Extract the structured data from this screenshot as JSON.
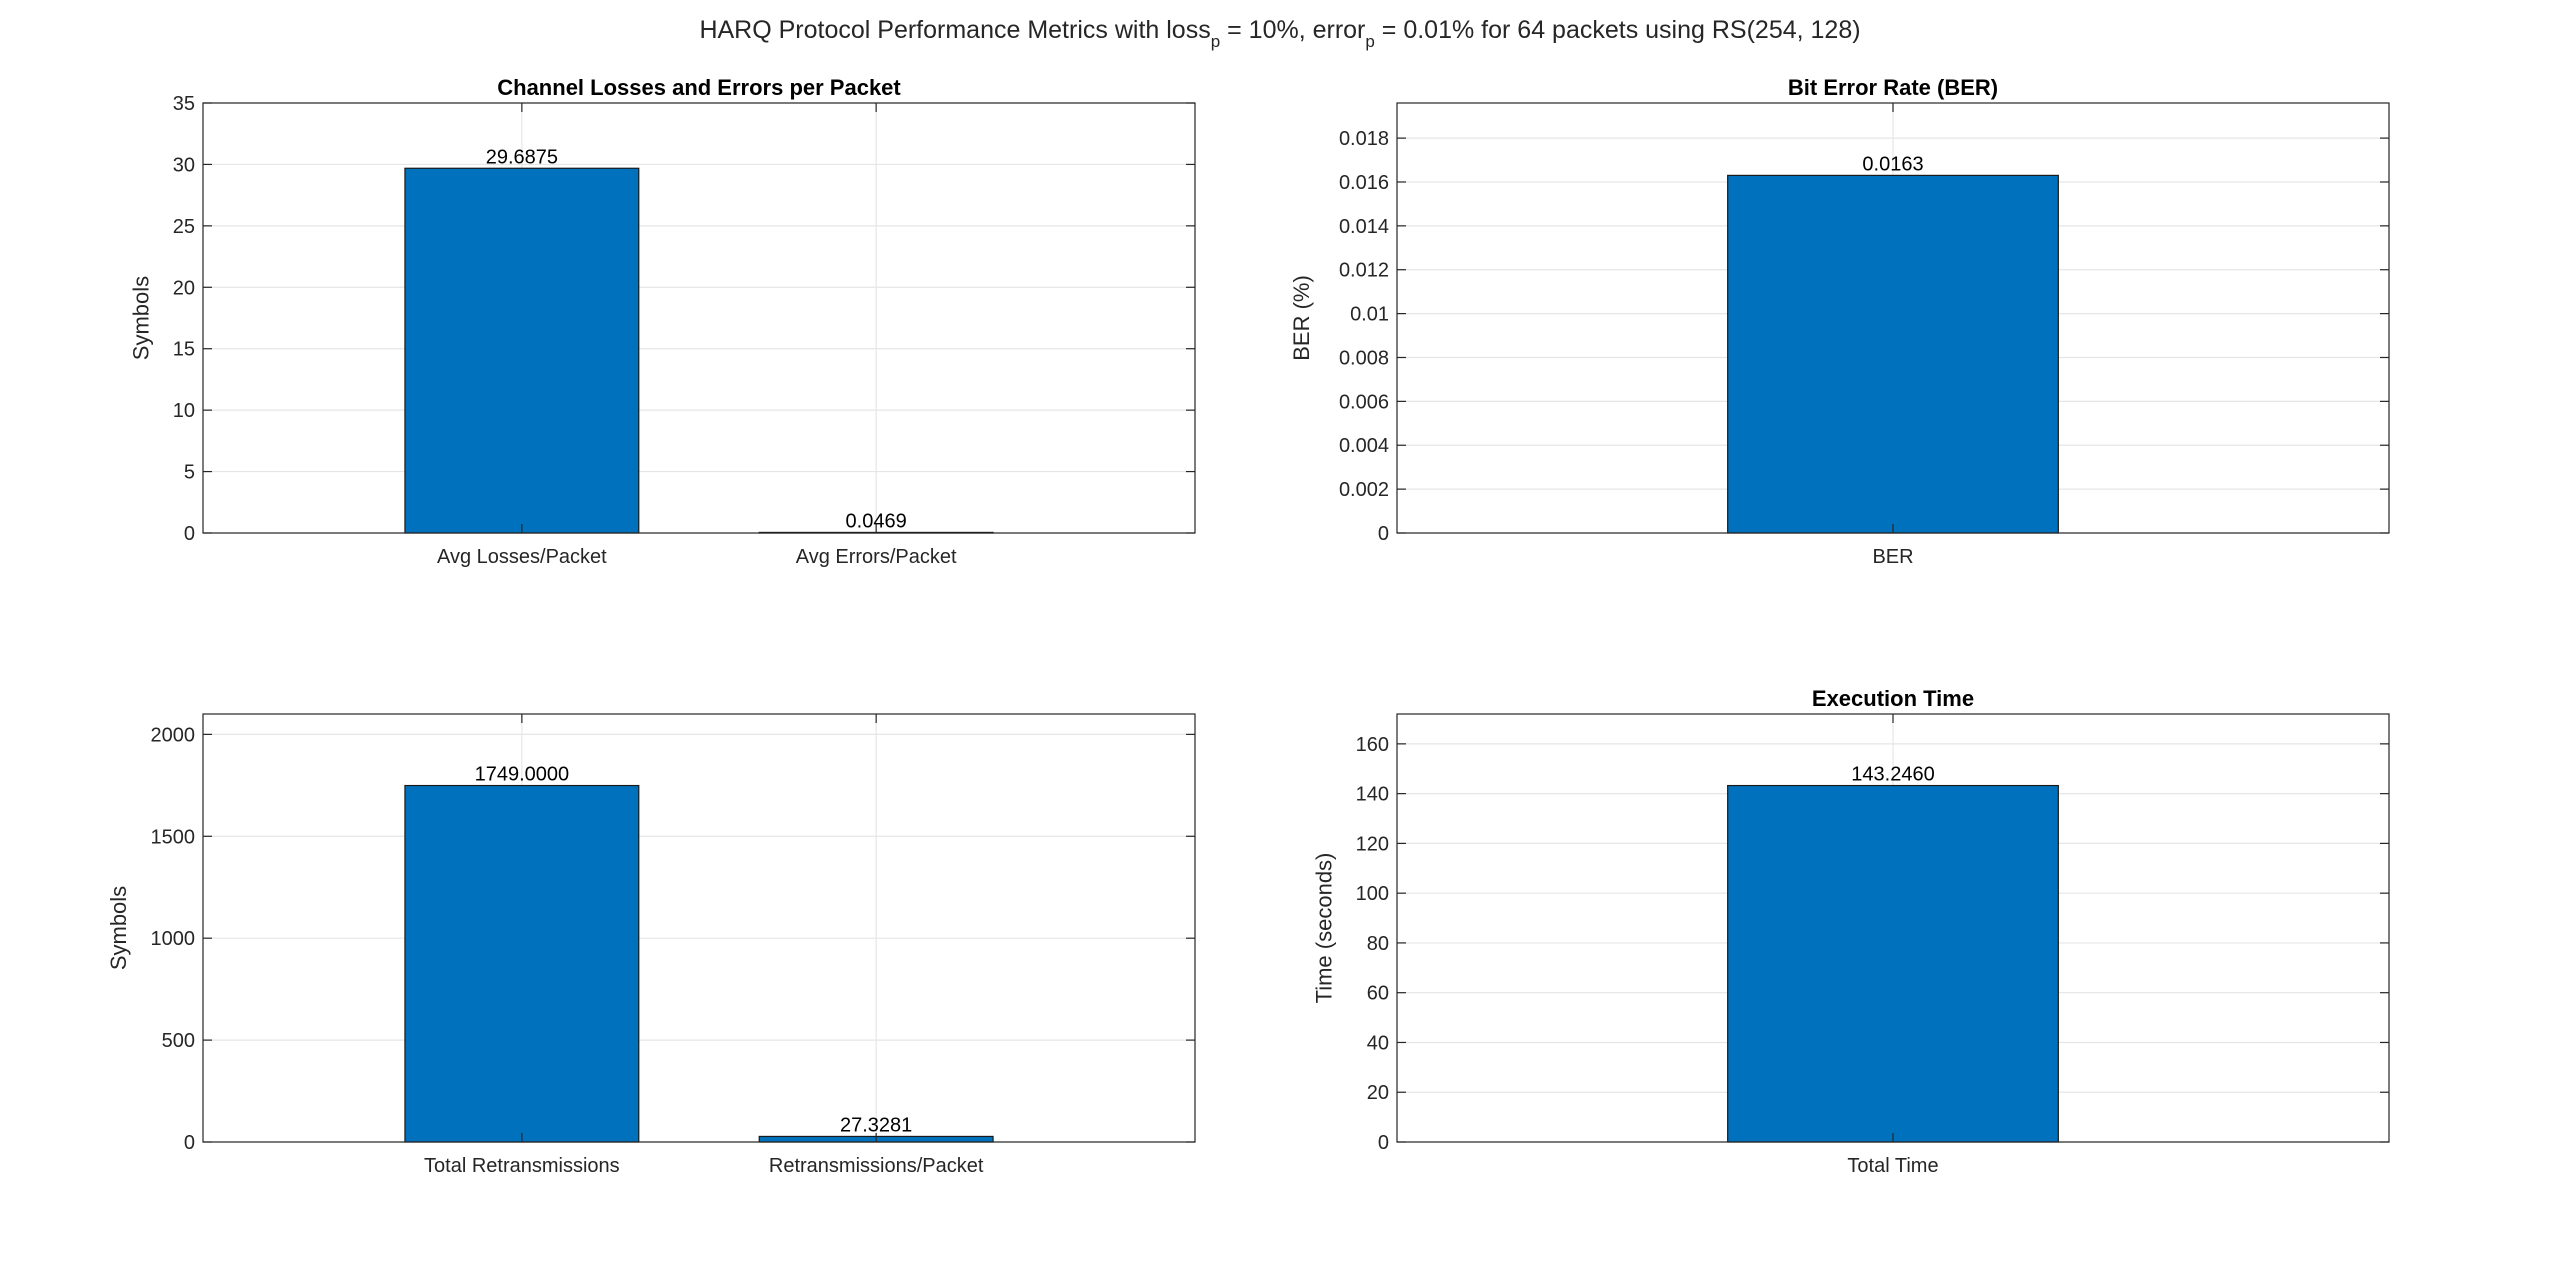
{
  "figure": {
    "suptitle_parts": [
      "HARQ Protocol Performance Metrics with loss",
      "p",
      " = 10%, error",
      "p",
      " = 0.01% for 64 packets using RS(254, 128)"
    ]
  },
  "colors": {
    "bar": "#0072BD",
    "grid": "#e6e6e6",
    "axis": "#262626"
  },
  "chart_data": [
    {
      "type": "bar",
      "title": "Channel Losses and Errors per Packet",
      "xlabel": "",
      "ylabel": "Symbols",
      "categories": [
        "Avg Losses/Packet",
        "Avg Errors/Packet"
      ],
      "values": [
        29.6875,
        0.0469
      ],
      "value_labels": [
        "29.6875",
        "0.0469"
      ],
      "ylim": [
        0,
        35
      ],
      "yticks": [
        0,
        5,
        10,
        15,
        20,
        25,
        30,
        35
      ],
      "ytick_labels": [
        "0",
        "5",
        "10",
        "15",
        "20",
        "25",
        "30",
        "35"
      ],
      "xlim": [
        0.6,
        3.4
      ],
      "bar_width": 0.66,
      "grid": true
    },
    {
      "type": "bar",
      "title": "Bit Error Rate (BER)",
      "xlabel": "",
      "ylabel": "BER (%)",
      "categories": [
        "BER"
      ],
      "values": [
        0.0163
      ],
      "value_labels": [
        "0.0163"
      ],
      "ylim": [
        0,
        0.0196
      ],
      "yticks": [
        0,
        0.002,
        0.004,
        0.006,
        0.008,
        0.01,
        0.012,
        0.014,
        0.016,
        0.018
      ],
      "ytick_labels": [
        "0",
        "0.002",
        "0.004",
        "0.006",
        "0.008",
        "0.01",
        "0.012",
        "0.014",
        "0.016",
        "0.018"
      ],
      "xlim": [
        0.4,
        1.6
      ],
      "bar_width": 0.4,
      "grid": true
    },
    {
      "type": "bar",
      "title": "",
      "xlabel": "",
      "ylabel": "Symbols",
      "categories": [
        "Total Retransmissions",
        "Retransmissions/Packet"
      ],
      "values": [
        1749.0,
        27.3281
      ],
      "value_labels": [
        "1749.0000",
        "27.3281"
      ],
      "ylim": [
        0,
        2100
      ],
      "yticks": [
        0,
        500,
        1000,
        1500,
        2000
      ],
      "ytick_labels": [
        "0",
        "500",
        "1000",
        "1500",
        "2000"
      ],
      "xlim": [
        0.6,
        3.4
      ],
      "bar_width": 0.66,
      "grid": true
    },
    {
      "type": "bar",
      "title": "Execution Time",
      "xlabel": "",
      "ylabel": "Time (seconds)",
      "categories": [
        "Total Time"
      ],
      "values": [
        143.246
      ],
      "value_labels": [
        "143.2460"
      ],
      "ylim": [
        0,
        172
      ],
      "yticks": [
        0,
        20,
        40,
        60,
        80,
        100,
        120,
        140,
        160
      ],
      "ytick_labels": [
        "0",
        "20",
        "40",
        "60",
        "80",
        "100",
        "120",
        "140",
        "160"
      ],
      "xlim": [
        0.4,
        1.6
      ],
      "bar_width": 0.4,
      "grid": true
    }
  ]
}
